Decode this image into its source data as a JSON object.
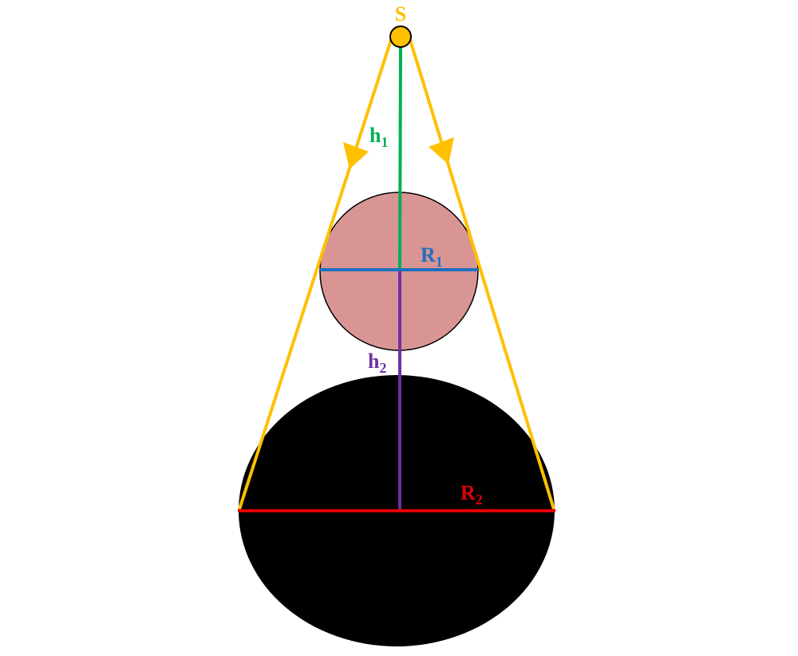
{
  "labels": {
    "source": "S",
    "h1_base": "h",
    "h1_sub": "1",
    "r1_base": "R",
    "r1_sub": "1",
    "h2_base": "h",
    "h2_sub": "2",
    "r2_base": "R",
    "r2_sub": "2"
  },
  "colors": {
    "light_ray": "#FFC000",
    "source_fill": "#FFC000",
    "h1_line": "#00B050",
    "h2_line": "#7030A0",
    "r1_line": "#1F6FC0",
    "r2_line": "#E00000",
    "small_sphere": "#D99594",
    "large_sphere": "#000000",
    "source_label": "#FFC000",
    "h1_label": "#00B050",
    "r1_label": "#1F6FC0",
    "h2_label": "#7030A0",
    "r2_label": "#E00000"
  }
}
